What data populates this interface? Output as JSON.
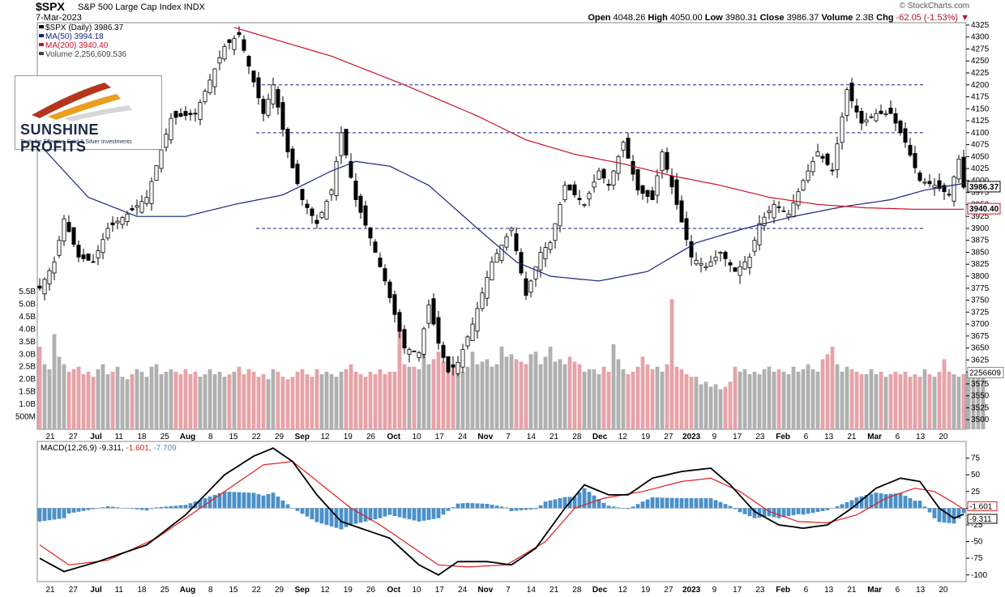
{
  "header": {
    "symbol": "$SPX",
    "name": "S&P 500 Large Cap Index",
    "exchange": "INDX",
    "date": "7-Mar-2023",
    "source": "© StockCharts.com",
    "open_label": "Open",
    "open": "4048.26",
    "high_label": "High",
    "high": "4050.00",
    "low_label": "Low",
    "low": "3980.31",
    "close_label": "Close",
    "close": "3986.37",
    "volume_label": "Volume",
    "volume": "2.3B",
    "chg_label": "Chg",
    "chg": "-62.05 (-1.53%)"
  },
  "legend": {
    "price": "$SPX (Daily) 3986.37",
    "ma50": "MA(50) 3994.18",
    "ma200": "MA(200) 3940.40",
    "volume": "Volume 2,256,609,536"
  },
  "logo": {
    "name": "SUNSHINE PROFITS",
    "tagline": "Tools for Effective Gold & Silver Investments"
  },
  "colors": {
    "up": "#ffffff",
    "down": "#000000",
    "ma50": "#1a237e",
    "ma200": "#c8102e",
    "vol_up": "#b0b0b0",
    "vol_down": "#e6a3a8",
    "hist": "#4a90c8",
    "macd": "#000000",
    "signal": "#e01e1e",
    "hline": "#1a237e"
  },
  "chart_data": [
    {
      "type": "candlestick",
      "title": "$SPX S&P 500 Large Cap Index",
      "ylim": [
        3480,
        4330
      ],
      "y_ticks": [
        3500,
        3525,
        3550,
        3575,
        3600,
        3625,
        3650,
        3675,
        3700,
        3725,
        3750,
        3775,
        3800,
        3825,
        3850,
        3875,
        3900,
        3925,
        3950,
        3975,
        4000,
        4025,
        4050,
        4075,
        4100,
        4125,
        4150,
        4175,
        4200,
        4225,
        4250,
        4275,
        4300,
        4325
      ],
      "x_ticks": [
        "21",
        "27",
        "Jul",
        "11",
        "18",
        "25",
        "Aug",
        "8",
        "15",
        "22",
        "29",
        "Sep",
        "12",
        "19",
        "26",
        "Oct",
        "10",
        "17",
        "24",
        "Nov",
        "7",
        "14",
        "21",
        "28",
        "Dec",
        "12",
        "19",
        "27",
        "2023",
        "9",
        "17",
        "23",
        "Feb",
        "6",
        "13",
        "21",
        "Mar",
        "6",
        "13",
        "20"
      ],
      "price_labels": [
        "3986.37",
        "3940.40"
      ],
      "horizontal_lines": [
        4200,
        4100,
        3900
      ],
      "anchors": [
        {
          "d": 0,
          "c": 3775
        },
        {
          "d": 3,
          "c": 3830
        },
        {
          "d": 5,
          "c": 3920
        },
        {
          "d": 8,
          "c": 3840
        },
        {
          "d": 11,
          "c": 3830
        },
        {
          "d": 14,
          "c": 3900
        },
        {
          "d": 18,
          "c": 3930
        },
        {
          "d": 22,
          "c": 3965
        },
        {
          "d": 27,
          "c": 4130
        },
        {
          "d": 32,
          "c": 4140
        },
        {
          "d": 38,
          "c": 4280
        },
        {
          "d": 41,
          "c": 4305
        },
        {
          "d": 46,
          "c": 4140
        },
        {
          "d": 48,
          "c": 4200
        },
        {
          "d": 51,
          "c": 4060
        },
        {
          "d": 54,
          "c": 3960
        },
        {
          "d": 57,
          "c": 3910
        },
        {
          "d": 60,
          "c": 3980
        },
        {
          "d": 62,
          "c": 4100
        },
        {
          "d": 65,
          "c": 3960
        },
        {
          "d": 68,
          "c": 3880
        },
        {
          "d": 71,
          "c": 3790
        },
        {
          "d": 75,
          "c": 3650
        },
        {
          "d": 78,
          "c": 3640
        },
        {
          "d": 80,
          "c": 3740
        },
        {
          "d": 82,
          "c": 3660
        },
        {
          "d": 84,
          "c": 3600
        },
        {
          "d": 86,
          "c": 3620
        },
        {
          "d": 89,
          "c": 3700
        },
        {
          "d": 93,
          "c": 3830
        },
        {
          "d": 97,
          "c": 3900
        },
        {
          "d": 100,
          "c": 3760
        },
        {
          "d": 103,
          "c": 3850
        },
        {
          "d": 105,
          "c": 3870
        },
        {
          "d": 108,
          "c": 3990
        },
        {
          "d": 112,
          "c": 3950
        },
        {
          "d": 115,
          "c": 4020
        },
        {
          "d": 117,
          "c": 3990
        },
        {
          "d": 120,
          "c": 4080
        },
        {
          "d": 123,
          "c": 3980
        },
        {
          "d": 126,
          "c": 3960
        },
        {
          "d": 128,
          "c": 4060
        },
        {
          "d": 131,
          "c": 3950
        },
        {
          "d": 134,
          "c": 3840
        },
        {
          "d": 137,
          "c": 3820
        },
        {
          "d": 140,
          "c": 3850
        },
        {
          "d": 143,
          "c": 3810
        },
        {
          "d": 146,
          "c": 3840
        },
        {
          "d": 148,
          "c": 3910
        },
        {
          "d": 151,
          "c": 3950
        },
        {
          "d": 154,
          "c": 3930
        },
        {
          "d": 157,
          "c": 4000
        },
        {
          "d": 160,
          "c": 4060
        },
        {
          "d": 163,
          "c": 4020
        },
        {
          "d": 166,
          "c": 4190
        },
        {
          "d": 169,
          "c": 4120
        },
        {
          "d": 172,
          "c": 4140
        },
        {
          "d": 175,
          "c": 4140
        },
        {
          "d": 178,
          "c": 4080
        },
        {
          "d": 181,
          "c": 4000
        },
        {
          "d": 184,
          "c": 3990
        },
        {
          "d": 187,
          "c": 3970
        },
        {
          "d": 189,
          "c": 4045
        },
        {
          "d": 190,
          "c": 3986
        }
      ],
      "ma50_anchors": [
        {
          "d": 0,
          "v": 4075
        },
        {
          "d": 10,
          "v": 3965
        },
        {
          "d": 20,
          "v": 3925
        },
        {
          "d": 30,
          "v": 3925
        },
        {
          "d": 40,
          "v": 3950
        },
        {
          "d": 50,
          "v": 3970
        },
        {
          "d": 60,
          "v": 4020
        },
        {
          "d": 65,
          "v": 4040
        },
        {
          "d": 72,
          "v": 4030
        },
        {
          "d": 80,
          "v": 3990
        },
        {
          "d": 90,
          "v": 3900
        },
        {
          "d": 98,
          "v": 3830
        },
        {
          "d": 105,
          "v": 3800
        },
        {
          "d": 115,
          "v": 3790
        },
        {
          "d": 125,
          "v": 3810
        },
        {
          "d": 135,
          "v": 3870
        },
        {
          "d": 145,
          "v": 3900
        },
        {
          "d": 155,
          "v": 3925
        },
        {
          "d": 165,
          "v": 3945
        },
        {
          "d": 175,
          "v": 3960
        },
        {
          "d": 182,
          "v": 3980
        },
        {
          "d": 190,
          "v": 3994
        }
      ],
      "ma200_anchors": [
        {
          "d": 40,
          "v": 4320
        },
        {
          "d": 60,
          "v": 4260
        },
        {
          "d": 75,
          "v": 4200
        },
        {
          "d": 90,
          "v": 4135
        },
        {
          "d": 100,
          "v": 4085
        },
        {
          "d": 110,
          "v": 4055
        },
        {
          "d": 120,
          "v": 4035
        },
        {
          "d": 130,
          "v": 4010
        },
        {
          "d": 140,
          "v": 3990
        },
        {
          "d": 150,
          "v": 3965
        },
        {
          "d": 160,
          "v": 3950
        },
        {
          "d": 170,
          "v": 3943
        },
        {
          "d": 180,
          "v": 3940
        },
        {
          "d": 190,
          "v": 3940
        }
      ]
    },
    {
      "type": "bar",
      "title": "Volume",
      "ylim": [
        0,
        5.5
      ],
      "y_ticks": [
        "500M",
        "1.0B",
        "1.5B",
        "2.0B",
        "2.5B",
        "3.0B",
        "3.5B",
        "4.0B",
        "4.5B",
        "5.0B",
        "5.5B"
      ],
      "last_value_label": "2256609",
      "values_b": [
        3.3,
        2.6,
        2.4,
        3.8,
        2.9,
        2.6,
        2.3,
        2.4,
        2.5,
        2.2,
        2.3,
        2.1,
        2.4,
        2.6,
        2.2,
        2.3,
        2.5,
        2.1,
        2.0,
        2.2,
        2.4,
        2.3,
        2.1,
        2.5,
        2.6,
        2.2,
        2.3,
        2.4,
        2.3,
        2.2,
        2.4,
        2.2,
        2.3,
        2.1,
        2.2,
        2.4,
        2.2,
        2.3,
        2.1,
        2.2,
        2.3,
        2.5,
        2.2,
        2.4,
        2.3,
        2.1,
        2.2,
        2.0,
        2.4,
        2.3,
        2.1,
        2.0,
        2.1,
        2.3,
        2.4,
        2.2,
        2.1,
        2.4,
        2.2,
        2.3,
        2.2,
        2.1,
        2.3,
        2.4,
        2.6,
        2.3,
        2.2,
        2.1,
        2.3,
        2.2,
        2.4,
        2.2,
        2.3,
        2.3,
        4.0,
        2.6,
        2.5,
        2.5,
        2.4,
        3.2,
        2.6,
        2.8,
        3.1,
        2.7,
        2.5,
        2.6,
        2.4,
        2.3,
        2.5,
        3.1,
        2.6,
        2.7,
        2.8,
        2.5,
        2.6,
        3.3,
        2.9,
        3.0,
        2.8,
        2.7,
        2.6,
        3.0,
        3.1,
        2.6,
        2.9,
        3.3,
        2.7,
        2.8,
        2.6,
        2.9,
        2.7,
        2.6,
        2.3,
        2.4,
        2.4,
        2.2,
        2.5,
        2.3,
        3.4,
        2.8,
        2.4,
        2.2,
        2.3,
        2.5,
        2.9,
        2.6,
        2.4,
        2.5,
        2.3,
        2.6,
        5.2,
        2.5,
        2.4,
        2.2,
        2.1,
        2.1,
        1.8,
        1.9,
        1.7,
        1.8,
        1.6,
        1.7,
        1.9,
        2.5,
        2.3,
        2.4,
        2.2,
        2.3,
        2.2,
        2.4,
        2.5,
        2.3,
        2.4,
        2.3,
        2.2,
        2.5,
        2.3,
        2.4,
        2.6,
        2.4,
        2.3,
        2.8,
        3.0,
        3.3,
        2.6,
        2.3,
        2.5,
        2.4,
        2.3,
        2.2,
        2.2,
        2.4,
        2.2,
        2.3,
        2.1,
        2.2,
        2.3,
        2.2,
        2.3,
        2.1,
        2.2,
        2.1,
        2.4,
        2.2,
        2.1,
        2.3,
        2.8,
        2.3,
        2.2,
        2.1,
        2.2,
        2.3,
        2.2,
        2.1,
        2.3
      ]
    },
    {
      "type": "line",
      "title": "MACD(12,26,9) -9.311, -1.601, -7.709",
      "legend_macd": "MACD(12,26,9) -9.311,",
      "legend_signal": "-1.601,",
      "legend_hist": "-7.709",
      "ylim": [
        -110,
        100
      ],
      "y_ticks": [
        75,
        50,
        25,
        0,
        -25,
        -50,
        -75,
        -100
      ],
      "value_labels": [
        "-1.601",
        "-9.311"
      ],
      "macd_anchors": [
        {
          "d": 0,
          "v": -75
        },
        {
          "d": 5,
          "v": -95
        },
        {
          "d": 12,
          "v": -80
        },
        {
          "d": 22,
          "v": -55
        },
        {
          "d": 30,
          "v": -10
        },
        {
          "d": 38,
          "v": 50
        },
        {
          "d": 44,
          "v": 78
        },
        {
          "d": 48,
          "v": 90
        },
        {
          "d": 52,
          "v": 70
        },
        {
          "d": 57,
          "v": 20
        },
        {
          "d": 62,
          "v": -20
        },
        {
          "d": 66,
          "v": -30
        },
        {
          "d": 72,
          "v": -45
        },
        {
          "d": 78,
          "v": -85
        },
        {
          "d": 82,
          "v": -100
        },
        {
          "d": 86,
          "v": -80
        },
        {
          "d": 92,
          "v": -80
        },
        {
          "d": 97,
          "v": -85
        },
        {
          "d": 102,
          "v": -60
        },
        {
          "d": 108,
          "v": 0
        },
        {
          "d": 112,
          "v": 35
        },
        {
          "d": 117,
          "v": 20
        },
        {
          "d": 121,
          "v": 20
        },
        {
          "d": 126,
          "v": 45
        },
        {
          "d": 132,
          "v": 55
        },
        {
          "d": 138,
          "v": 60
        },
        {
          "d": 142,
          "v": 35
        },
        {
          "d": 147,
          "v": -5
        },
        {
          "d": 152,
          "v": -25
        },
        {
          "d": 157,
          "v": -30
        },
        {
          "d": 162,
          "v": -25
        },
        {
          "d": 167,
          "v": 0
        },
        {
          "d": 172,
          "v": 30
        },
        {
          "d": 177,
          "v": 45
        },
        {
          "d": 181,
          "v": 40
        },
        {
          "d": 185,
          "v": 0
        },
        {
          "d": 188,
          "v": -15
        },
        {
          "d": 190,
          "v": -9
        }
      ],
      "signal_anchors": [
        {
          "d": 0,
          "v": -55
        },
        {
          "d": 6,
          "v": -85
        },
        {
          "d": 14,
          "v": -78
        },
        {
          "d": 24,
          "v": -45
        },
        {
          "d": 32,
          "v": -5
        },
        {
          "d": 40,
          "v": 35
        },
        {
          "d": 46,
          "v": 65
        },
        {
          "d": 52,
          "v": 70
        },
        {
          "d": 58,
          "v": 35
        },
        {
          "d": 64,
          "v": 0
        },
        {
          "d": 70,
          "v": -25
        },
        {
          "d": 76,
          "v": -55
        },
        {
          "d": 82,
          "v": -85
        },
        {
          "d": 88,
          "v": -88
        },
        {
          "d": 96,
          "v": -85
        },
        {
          "d": 104,
          "v": -50
        },
        {
          "d": 110,
          "v": 0
        },
        {
          "d": 116,
          "v": 15
        },
        {
          "d": 124,
          "v": 25
        },
        {
          "d": 132,
          "v": 40
        },
        {
          "d": 138,
          "v": 45
        },
        {
          "d": 144,
          "v": 25
        },
        {
          "d": 150,
          "v": -5
        },
        {
          "d": 156,
          "v": -20
        },
        {
          "d": 162,
          "v": -22
        },
        {
          "d": 168,
          "v": -10
        },
        {
          "d": 174,
          "v": 15
        },
        {
          "d": 180,
          "v": 30
        },
        {
          "d": 184,
          "v": 25
        },
        {
          "d": 188,
          "v": 8
        },
        {
          "d": 190,
          "v": -1.6
        }
      ]
    }
  ]
}
